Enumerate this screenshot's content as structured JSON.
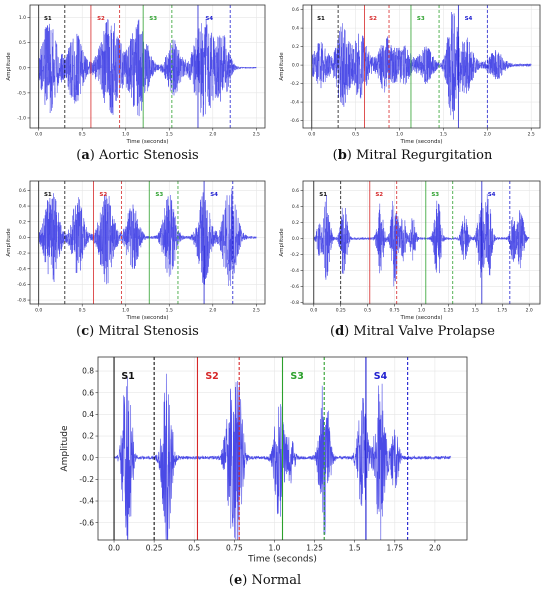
{
  "chart_data": [
    {
      "type": "line",
      "caption_letter": "a",
      "caption_text": "Aortic Stenosis",
      "xlabel": "Time (seconds)",
      "ylabel": "Amplitude",
      "xlim": [
        -0.1,
        2.6
      ],
      "ylim": [
        -1.2,
        1.25
      ],
      "xticks": [
        0.0,
        0.5,
        1.0,
        1.5,
        2.0,
        2.5
      ],
      "yticks": [
        -1.0,
        -0.5,
        0.0,
        0.5,
        1.0
      ],
      "grid": true,
      "bursts": [
        [
          0.12,
          0.9,
          0.17
        ],
        [
          0.42,
          0.7,
          0.16
        ],
        [
          0.82,
          1.0,
          0.2
        ],
        [
          1.15,
          0.95,
          0.18
        ],
        [
          1.55,
          0.55,
          0.14
        ],
        [
          1.9,
          1.0,
          0.2
        ],
        [
          2.12,
          0.6,
          0.13
        ]
      ],
      "segments": [
        {
          "label": "S1",
          "color": "#111111",
          "start": 0.0,
          "end": 0.3
        },
        {
          "label": "S2",
          "color": "#d62728",
          "start": 0.6,
          "end": 0.93
        },
        {
          "label": "S3",
          "color": "#2ca02c",
          "start": 1.2,
          "end": 1.53
        },
        {
          "label": "S4",
          "color": "#1f1fd0",
          "start": 1.83,
          "end": 2.2
        }
      ]
    },
    {
      "type": "line",
      "caption_letter": "b",
      "caption_text": "Mitral Regurgitation",
      "xlabel": "Time (seconds)",
      "ylabel": "Amplitude",
      "xlim": [
        -0.1,
        2.6
      ],
      "ylim": [
        -0.68,
        0.65
      ],
      "xticks": [
        0.0,
        0.5,
        1.0,
        1.5,
        2.0,
        2.5
      ],
      "yticks": [
        -0.6,
        -0.4,
        -0.2,
        0.0,
        0.2,
        0.4,
        0.6
      ],
      "grid": true,
      "bursts": [
        [
          0.1,
          0.25,
          0.15
        ],
        [
          0.35,
          0.45,
          0.12
        ],
        [
          0.55,
          0.35,
          0.15
        ],
        [
          0.85,
          0.3,
          0.15
        ],
        [
          1.05,
          0.2,
          0.14
        ],
        [
          1.3,
          0.2,
          0.14
        ],
        [
          1.6,
          0.55,
          0.1
        ],
        [
          1.75,
          0.3,
          0.15
        ],
        [
          2.1,
          0.15,
          0.15
        ]
      ],
      "segments": [
        {
          "label": "S1",
          "color": "#111111",
          "start": 0.0,
          "end": 0.3
        },
        {
          "label": "S2",
          "color": "#d62728",
          "start": 0.6,
          "end": 0.88
        },
        {
          "label": "S3",
          "color": "#2ca02c",
          "start": 1.13,
          "end": 1.45
        },
        {
          "label": "S4",
          "color": "#1f1fd0",
          "start": 1.67,
          "end": 2.0
        }
      ]
    },
    {
      "type": "line",
      "caption_letter": "c",
      "caption_text": "Mitral Stenosis",
      "xlabel": "Time (seconds)",
      "ylabel": "Amplitude",
      "xlim": [
        -0.1,
        2.6
      ],
      "ylim": [
        -0.85,
        0.72
      ],
      "xticks": [
        0.0,
        0.5,
        1.0,
        1.5,
        2.0,
        2.5
      ],
      "yticks": [
        -0.8,
        -0.6,
        -0.4,
        -0.2,
        0.0,
        0.2,
        0.4,
        0.6
      ],
      "grid": true,
      "bursts": [
        [
          0.15,
          0.6,
          0.14
        ],
        [
          0.45,
          0.5,
          0.12
        ],
        [
          0.78,
          0.6,
          0.14
        ],
        [
          1.08,
          0.45,
          0.12
        ],
        [
          1.5,
          0.55,
          0.12
        ],
        [
          1.9,
          0.6,
          0.12
        ],
        [
          2.2,
          0.65,
          0.14
        ]
      ],
      "segments": [
        {
          "label": "S1",
          "color": "#111111",
          "start": 0.0,
          "end": 0.3
        },
        {
          "label": "S2",
          "color": "#d62728",
          "start": 0.63,
          "end": 0.95
        },
        {
          "label": "S3",
          "color": "#2ca02c",
          "start": 1.27,
          "end": 1.6
        },
        {
          "label": "S4",
          "color": "#1f1fd0",
          "start": 1.9,
          "end": 2.23
        }
      ]
    },
    {
      "type": "line",
      "caption_letter": "d",
      "caption_text": "Mitral Valve Prolapse",
      "xlabel": "Time (seconds)",
      "ylabel": "Amplitude",
      "xlim": [
        -0.1,
        2.1
      ],
      "ylim": [
        -0.82,
        0.72
      ],
      "xticks": [
        0.0,
        0.25,
        0.5,
        0.75,
        1.0,
        1.25,
        1.5,
        1.75,
        2.0
      ],
      "yticks": [
        -0.8,
        -0.6,
        -0.4,
        -0.2,
        0.0,
        0.2,
        0.4,
        0.6
      ],
      "grid": true,
      "bursts": [
        [
          0.05,
          0.2,
          0.04
        ],
        [
          0.12,
          0.55,
          0.05
        ],
        [
          0.28,
          0.5,
          0.05
        ],
        [
          0.62,
          0.45,
          0.05
        ],
        [
          0.75,
          0.65,
          0.05
        ],
        [
          0.83,
          0.3,
          0.04
        ],
        [
          0.92,
          0.3,
          0.04
        ],
        [
          1.15,
          0.55,
          0.05
        ],
        [
          1.4,
          0.3,
          0.05
        ],
        [
          1.55,
          0.5,
          0.05
        ],
        [
          1.62,
          0.6,
          0.05
        ],
        [
          1.85,
          0.3,
          0.04
        ],
        [
          1.92,
          0.4,
          0.05
        ]
      ],
      "segments": [
        {
          "label": "S1",
          "color": "#111111",
          "start": 0.0,
          "end": 0.25
        },
        {
          "label": "S2",
          "color": "#d62728",
          "start": 0.52,
          "end": 0.77
        },
        {
          "label": "S3",
          "color": "#2ca02c",
          "start": 1.04,
          "end": 1.29
        },
        {
          "label": "S4",
          "color": "#1f1fd0",
          "start": 1.56,
          "end": 1.82
        }
      ]
    },
    {
      "type": "line",
      "caption_letter": "e",
      "caption_text": "Normal",
      "xlabel": "Time (seconds)",
      "ylabel": "Amplitude",
      "xlim": [
        -0.1,
        2.2
      ],
      "ylim": [
        -0.76,
        0.93
      ],
      "xticks": [
        0.0,
        0.25,
        0.5,
        0.75,
        1.0,
        1.25,
        1.5,
        1.75,
        2.0
      ],
      "yticks": [
        -0.6,
        -0.4,
        -0.2,
        0.0,
        0.2,
        0.4,
        0.6,
        0.8
      ],
      "grid": true,
      "bursts": [
        [
          0.06,
          0.35,
          0.03
        ],
        [
          0.09,
          0.75,
          0.04
        ],
        [
          0.33,
          0.78,
          0.05
        ],
        [
          0.72,
          0.5,
          0.05
        ],
        [
          0.77,
          0.8,
          0.05
        ],
        [
          1.03,
          0.6,
          0.05
        ],
        [
          1.1,
          0.22,
          0.04
        ],
        [
          1.31,
          0.75,
          0.05
        ],
        [
          1.55,
          0.55,
          0.05
        ],
        [
          1.66,
          0.78,
          0.05
        ],
        [
          1.75,
          0.3,
          0.04
        ]
      ],
      "segments": [
        {
          "label": "S1",
          "color": "#111111",
          "start": 0.0,
          "end": 0.25
        },
        {
          "label": "S2",
          "color": "#d62728",
          "start": 0.52,
          "end": 0.78
        },
        {
          "label": "S3",
          "color": "#2ca02c",
          "start": 1.05,
          "end": 1.31
        },
        {
          "label": "S4",
          "color": "#1f1fd0",
          "start": 1.57,
          "end": 1.83
        }
      ]
    }
  ]
}
